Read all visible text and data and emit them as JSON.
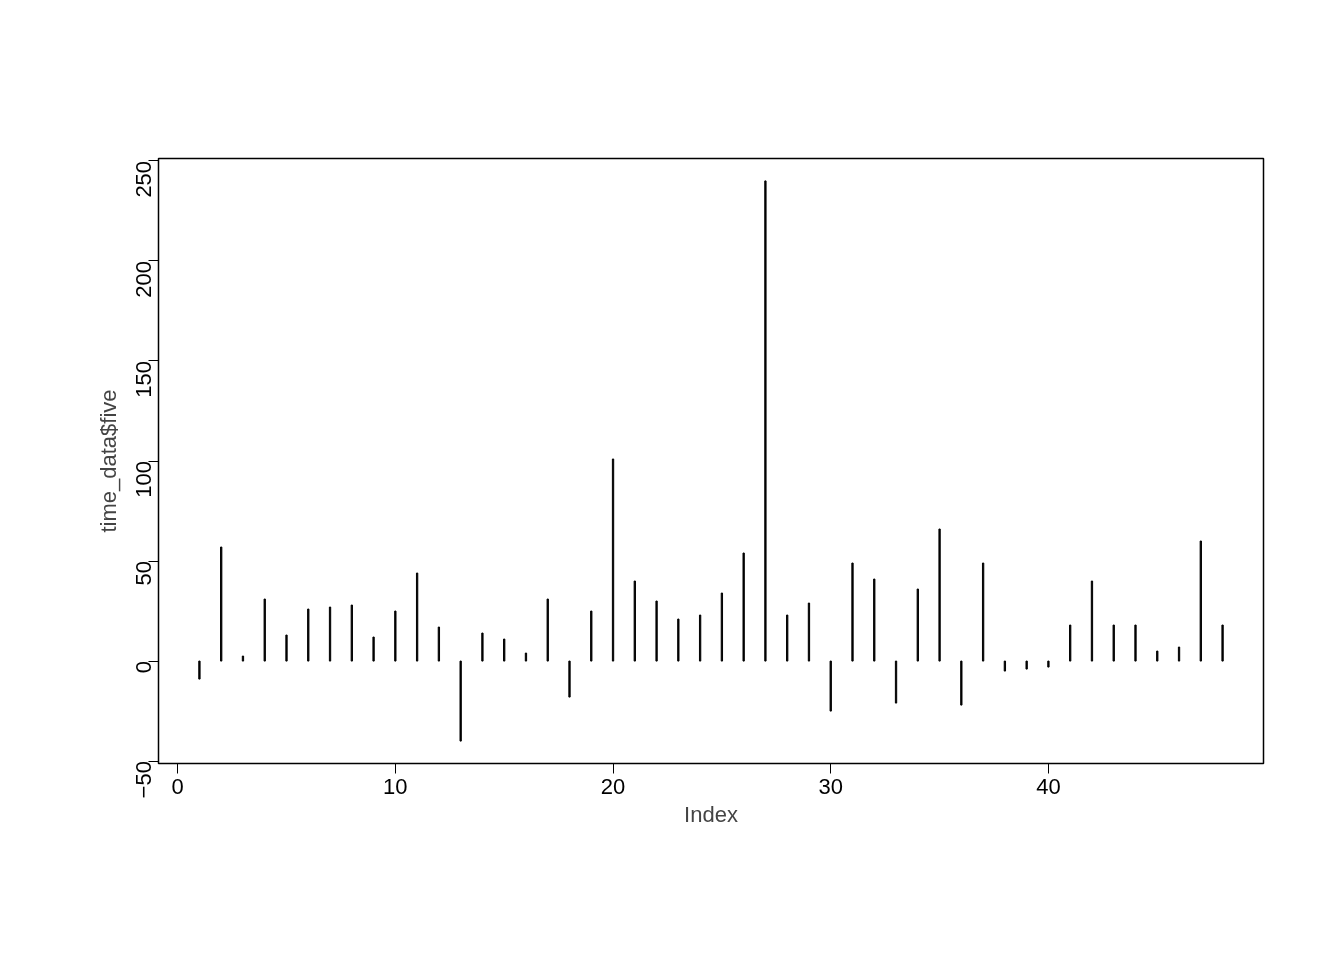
{
  "chart_data": {
    "type": "bar",
    "xlabel": "Index",
    "ylabel": "time_data$five",
    "x": [
      1,
      2,
      3,
      4,
      5,
      6,
      7,
      8,
      9,
      10,
      11,
      12,
      13,
      14,
      15,
      16,
      17,
      18,
      19,
      20,
      21,
      22,
      23,
      24,
      25,
      26,
      27,
      28,
      29,
      30,
      31,
      32,
      33,
      34,
      35,
      36,
      37,
      38,
      39,
      40,
      41,
      42,
      43,
      44,
      45,
      46,
      47,
      48
    ],
    "values": [
      -9,
      57,
      2.5,
      31,
      13,
      26,
      27,
      28,
      12,
      25,
      44,
      17,
      -40,
      14,
      11,
      4,
      31,
      -18,
      25,
      101,
      40,
      30,
      21,
      23,
      34,
      54,
      240,
      23,
      29,
      -25,
      49,
      41,
      -21,
      36,
      66,
      -22,
      49,
      -5,
      -4,
      -3,
      18,
      40,
      18,
      18,
      5,
      7,
      60,
      18
    ],
    "color": "#000000",
    "xlim": [
      -0.88,
      49.88
    ],
    "ylim": [
      -51.2,
      251.2
    ],
    "xticks": [
      0,
      10,
      20,
      30,
      40
    ],
    "yticks": [
      -50,
      0,
      50,
      100,
      150,
      200,
      250
    ],
    "grid": false
  }
}
